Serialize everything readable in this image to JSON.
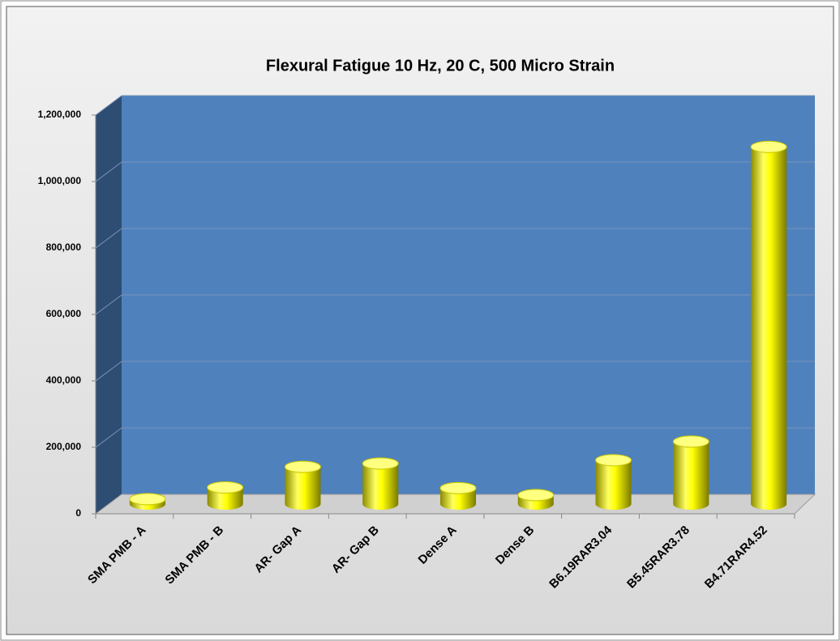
{
  "chart_data": {
    "type": "bar3d",
    "title": "Flexural Fatigue 10 Hz, 20 C, 500 Micro Strain",
    "categories": [
      "SMA PMB - A",
      "SMA PMB - B",
      "AR- Gap  A",
      "AR- Gap  B",
      "Dense A",
      "Dense B",
      "B6.19RAR3.04",
      "B5.45RAR3.78",
      "B4.71RAR4.52"
    ],
    "values": [
      15000,
      50000,
      112000,
      122000,
      48000,
      27000,
      132000,
      188000,
      1075000
    ],
    "color": "#ffff00",
    "ylim": [
      0,
      1200000
    ],
    "yticks": [
      0,
      {
        "value": 200000,
        "label": "200,000"
      },
      {
        "value": 400000,
        "label": "400,000"
      },
      {
        "value": 600000,
        "label": "600,000"
      },
      {
        "value": 800000,
        "label": "800,000"
      },
      {
        "value": 1000000,
        "label": "1,000,000"
      },
      {
        "value": 1200000,
        "label": "1,200,000"
      }
    ],
    "grid": true
  }
}
